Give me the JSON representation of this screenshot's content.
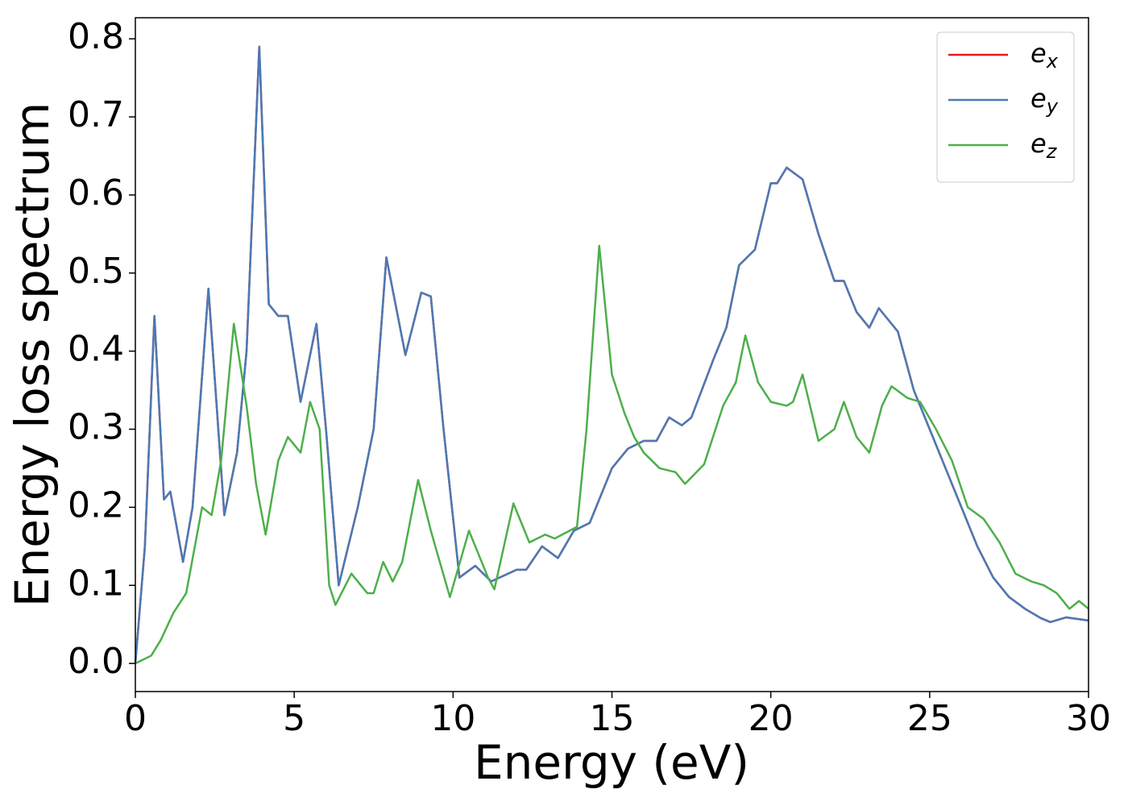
{
  "chart_data": {
    "type": "line",
    "xlabel": "Energy (eV)",
    "ylabel": "Energy loss spectrum",
    "xlim": [
      0,
      30
    ],
    "ylim": [
      -0.036,
      0.827
    ],
    "xticks": [
      0,
      5,
      10,
      15,
      20,
      25,
      30
    ],
    "yticks": [
      {
        "value": 0,
        "label": "0.0"
      },
      0.1,
      0.2,
      0.3,
      0.4,
      0.5,
      0.6,
      0.7,
      0.8
    ],
    "legend": "upper right",
    "series": [
      {
        "name": "e_x",
        "color": "#e41a1c",
        "x": [
          0,
          0.3,
          0.6,
          0.9,
          1.1,
          1.5,
          1.8,
          2.3,
          2.8,
          3.2,
          3.5,
          3.9,
          4.2,
          4.5,
          4.8,
          5.2,
          5.7,
          6.0,
          6.4,
          7.0,
          7.5,
          7.9,
          8.5,
          9.0,
          9.3,
          9.7,
          10.2,
          10.7,
          11.2,
          12.0,
          12.3,
          12.8,
          13.3,
          13.8,
          14.3,
          15.0,
          15.5,
          16.0,
          16.4,
          16.8,
          17.2,
          17.5,
          18.2,
          18.6,
          19.0,
          19.5,
          20.0,
          20.2,
          20.5,
          21.0,
          21.5,
          22.0,
          22.3,
          22.7,
          23.1,
          23.4,
          23.7,
          24.0,
          24.5,
          25.0,
          25.5,
          26.0,
          26.5,
          27.0,
          27.5,
          28.0,
          28.5,
          28.8,
          29.3,
          30
        ],
        "values": [
          0,
          0.15,
          0.445,
          0.21,
          0.22,
          0.13,
          0.2,
          0.48,
          0.19,
          0.27,
          0.4,
          0.79,
          0.46,
          0.445,
          0.445,
          0.335,
          0.435,
          0.3,
          0.1,
          0.2,
          0.3,
          0.52,
          0.395,
          0.475,
          0.47,
          0.3,
          0.11,
          0.125,
          0.105,
          0.12,
          0.12,
          0.15,
          0.135,
          0.17,
          0.18,
          0.25,
          0.275,
          0.285,
          0.285,
          0.315,
          0.305,
          0.315,
          0.39,
          0.43,
          0.51,
          0.53,
          0.615,
          0.615,
          0.635,
          0.62,
          0.55,
          0.49,
          0.49,
          0.45,
          0.43,
          0.455,
          0.44,
          0.425,
          0.35,
          0.3,
          0.25,
          0.2,
          0.15,
          0.11,
          0.085,
          0.07,
          0.058,
          0.053,
          0.059,
          0.055
        ]
      },
      {
        "name": "e_y",
        "color": "#4a7ab4",
        "x": [
          0,
          0.3,
          0.6,
          0.9,
          1.1,
          1.5,
          1.8,
          2.3,
          2.8,
          3.2,
          3.5,
          3.9,
          4.2,
          4.5,
          4.8,
          5.2,
          5.7,
          6.0,
          6.4,
          7.0,
          7.5,
          7.9,
          8.5,
          9.0,
          9.3,
          9.7,
          10.2,
          10.7,
          11.2,
          12.0,
          12.3,
          12.8,
          13.3,
          13.8,
          14.3,
          15.0,
          15.5,
          16.0,
          16.4,
          16.8,
          17.2,
          17.5,
          18.2,
          18.6,
          19.0,
          19.5,
          20.0,
          20.2,
          20.5,
          21.0,
          21.5,
          22.0,
          22.3,
          22.7,
          23.1,
          23.4,
          23.7,
          24.0,
          24.5,
          25.0,
          25.5,
          26.0,
          26.5,
          27.0,
          27.5,
          28.0,
          28.5,
          28.8,
          29.3,
          30
        ],
        "values": [
          0,
          0.15,
          0.445,
          0.21,
          0.22,
          0.13,
          0.2,
          0.48,
          0.19,
          0.27,
          0.4,
          0.79,
          0.46,
          0.445,
          0.445,
          0.335,
          0.435,
          0.3,
          0.1,
          0.2,
          0.3,
          0.52,
          0.395,
          0.475,
          0.47,
          0.3,
          0.11,
          0.125,
          0.105,
          0.12,
          0.12,
          0.15,
          0.135,
          0.17,
          0.18,
          0.25,
          0.275,
          0.285,
          0.285,
          0.315,
          0.305,
          0.315,
          0.39,
          0.43,
          0.51,
          0.53,
          0.615,
          0.615,
          0.635,
          0.62,
          0.55,
          0.49,
          0.49,
          0.45,
          0.43,
          0.455,
          0.44,
          0.425,
          0.35,
          0.3,
          0.25,
          0.2,
          0.15,
          0.11,
          0.085,
          0.07,
          0.058,
          0.053,
          0.059,
          0.055
        ]
      },
      {
        "name": "e_z",
        "color": "#4daf4a",
        "x": [
          0,
          0.5,
          0.8,
          1.2,
          1.6,
          2.1,
          2.4,
          2.7,
          3.1,
          3.5,
          3.8,
          4.1,
          4.5,
          4.8,
          5.2,
          5.5,
          5.8,
          6.1,
          6.3,
          6.8,
          7.3,
          7.5,
          7.8,
          8.1,
          8.4,
          8.9,
          9.3,
          9.9,
          10.5,
          11.1,
          11.3,
          11.9,
          12.4,
          12.9,
          13.2,
          13.9,
          14.2,
          14.6,
          15.0,
          15.4,
          15.7,
          16.0,
          16.5,
          17.0,
          17.3,
          17.9,
          18.5,
          18.9,
          19.2,
          19.6,
          20.0,
          20.5,
          20.7,
          21.0,
          21.5,
          22.0,
          22.3,
          22.7,
          23.1,
          23.5,
          23.8,
          24.3,
          24.7,
          25.2,
          25.7,
          26.2,
          26.7,
          27.2,
          27.7,
          28.2,
          28.6,
          29.0,
          29.4,
          29.7,
          30
        ],
        "values": [
          0,
          0.01,
          0.03,
          0.065,
          0.09,
          0.2,
          0.19,
          0.26,
          0.435,
          0.33,
          0.23,
          0.165,
          0.26,
          0.29,
          0.27,
          0.335,
          0.3,
          0.1,
          0.075,
          0.115,
          0.09,
          0.09,
          0.13,
          0.105,
          0.13,
          0.235,
          0.17,
          0.085,
          0.17,
          0.11,
          0.095,
          0.205,
          0.155,
          0.165,
          0.16,
          0.175,
          0.3,
          0.535,
          0.37,
          0.32,
          0.29,
          0.27,
          0.25,
          0.245,
          0.23,
          0.255,
          0.33,
          0.36,
          0.42,
          0.36,
          0.335,
          0.33,
          0.335,
          0.37,
          0.285,
          0.3,
          0.335,
          0.29,
          0.27,
          0.33,
          0.355,
          0.34,
          0.335,
          0.3,
          0.26,
          0.2,
          0.185,
          0.155,
          0.115,
          0.105,
          0.1,
          0.09,
          0.07,
          0.08,
          0.07
        ]
      }
    ]
  }
}
